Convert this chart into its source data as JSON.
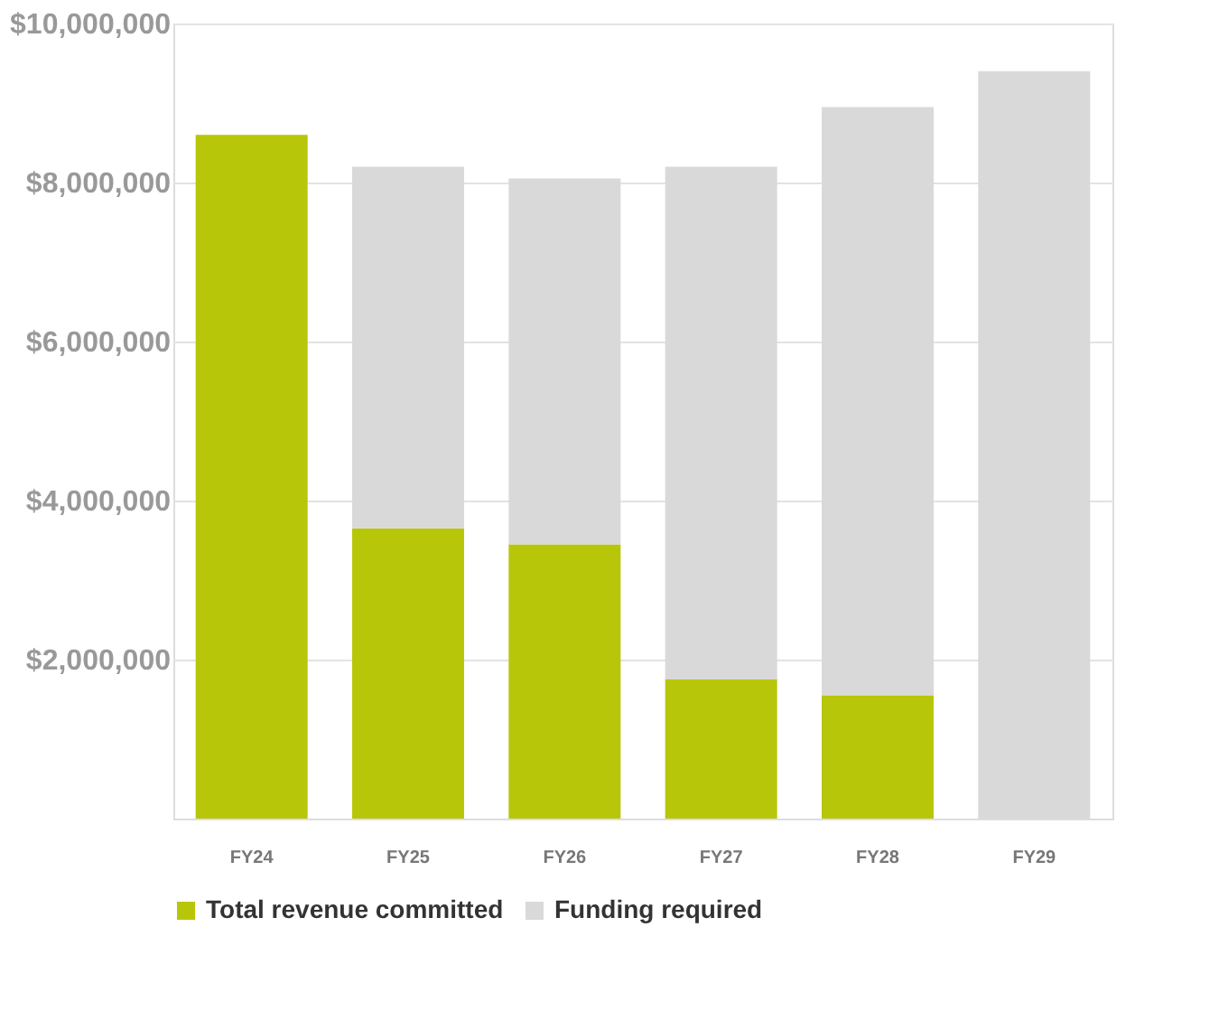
{
  "chart_data": {
    "type": "bar",
    "stacked": true,
    "categories": [
      "FY24",
      "FY25",
      "FY26",
      "FY27",
      "FY28",
      "FY29"
    ],
    "series": [
      {
        "name": "Total revenue committed",
        "color": "#b8c60a",
        "values": [
          8600000,
          3650000,
          3450000,
          1750000,
          1550000,
          0
        ]
      },
      {
        "name": "Funding required",
        "color": "#d9d9d9",
        "values": [
          0,
          4550000,
          4600000,
          6450000,
          7400000,
          9400000
        ]
      }
    ],
    "ylim": [
      0,
      10000000
    ],
    "yticks": [
      {
        "value": 2000000,
        "label": "$2,000,000"
      },
      {
        "value": 4000000,
        "label": "$4,000,000"
      },
      {
        "value": 6000000,
        "label": "$6,000,000"
      },
      {
        "value": 8000000,
        "label": "$8,000,000"
      },
      {
        "value": 10000000,
        "label": "$10,000,000"
      }
    ],
    "grid": "y",
    "legend": "bottom"
  }
}
